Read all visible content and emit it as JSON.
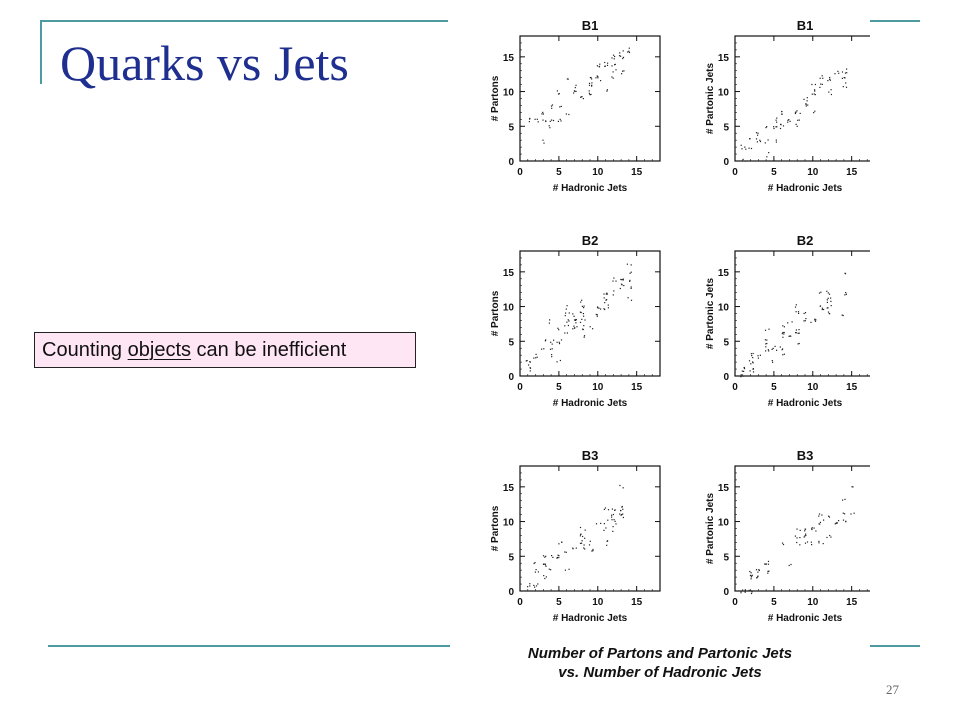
{
  "slide": {
    "title": "Quarks vs Jets",
    "callout": {
      "before": "Counting ",
      "underlined": "objects",
      "after": " can be inefficient"
    },
    "caption_line1": "Number of Partons and Partonic Jets",
    "caption_line2": "vs. Number of Hadronic Jets",
    "page_number": "27"
  },
  "chart_data": [
    {
      "type": "scatter",
      "title": "B1",
      "xlabel": "# Hadronic Jets",
      "ylabel": "# Partons",
      "xlim": [
        0,
        18
      ],
      "ylim": [
        0,
        18
      ],
      "xticks": [
        0,
        5,
        10,
        15
      ],
      "yticks": [
        0,
        5,
        10,
        15
      ],
      "trend": {
        "slope": 0.95,
        "intercept": 2.6,
        "spread": 1.6,
        "x_range": [
          1,
          14
        ],
        "density": 0.6
      }
    },
    {
      "type": "scatter",
      "title": "B1",
      "xlabel": "# Hadronic Jets",
      "ylabel": "# Partonic Jets",
      "xlim": [
        0,
        18
      ],
      "ylim": [
        0,
        18
      ],
      "xticks": [
        0,
        5,
        10,
        15
      ],
      "yticks": [
        0,
        5,
        10,
        15
      ],
      "trend": {
        "slope": 0.9,
        "intercept": 0.4,
        "spread": 1.3,
        "x_range": [
          1,
          14
        ],
        "density": 0.55
      }
    },
    {
      "type": "scatter",
      "title": "B2",
      "xlabel": "# Hadronic Jets",
      "ylabel": "# Partons",
      "xlim": [
        0,
        18
      ],
      "ylim": [
        0,
        18
      ],
      "xticks": [
        0,
        5,
        10,
        15
      ],
      "yticks": [
        0,
        5,
        10,
        15
      ],
      "trend": {
        "slope": 0.9,
        "intercept": 1.2,
        "spread": 1.6,
        "x_range": [
          1,
          14
        ],
        "density": 0.6
      }
    },
    {
      "type": "scatter",
      "title": "B2",
      "xlabel": "# Hadronic Jets",
      "ylabel": "# Partonic Jets",
      "xlim": [
        0,
        18
      ],
      "ylim": [
        0,
        18
      ],
      "xticks": [
        0,
        5,
        10,
        15
      ],
      "yticks": [
        0,
        5,
        10,
        15
      ],
      "trend": {
        "slope": 0.85,
        "intercept": 0.2,
        "spread": 1.3,
        "x_range": [
          1,
          14
        ],
        "density": 0.55
      }
    },
    {
      "type": "scatter",
      "title": "B3",
      "xlabel": "# Hadronic Jets",
      "ylabel": "# Partons",
      "xlim": [
        0,
        18
      ],
      "ylim": [
        0,
        18
      ],
      "xticks": [
        0,
        5,
        10,
        15
      ],
      "yticks": [
        0,
        5,
        10,
        15
      ],
      "trend": {
        "slope": 0.8,
        "intercept": 1.0,
        "spread": 1.6,
        "x_range": [
          1,
          13
        ],
        "density": 0.55
      }
    },
    {
      "type": "scatter",
      "title": "B3",
      "xlabel": "# Hadronic Jets",
      "ylabel": "# Partonic Jets",
      "xlim": [
        0,
        18
      ],
      "ylim": [
        0,
        18
      ],
      "xticks": [
        0,
        5,
        10,
        15
      ],
      "yticks": [
        0,
        5,
        10,
        15
      ],
      "trend": {
        "slope": 0.8,
        "intercept": 0.0,
        "spread": 1.3,
        "x_range": [
          1,
          15
        ],
        "density": 0.55
      }
    }
  ]
}
